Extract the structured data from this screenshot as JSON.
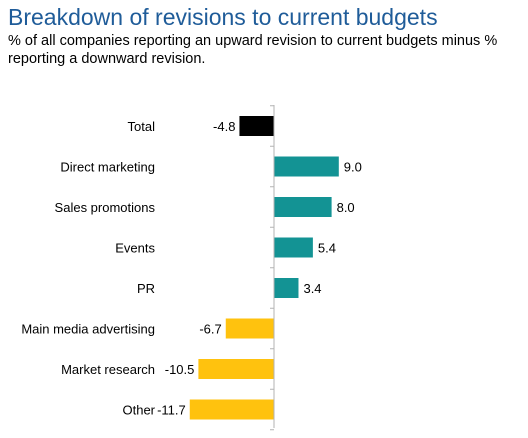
{
  "title": "Breakdown of revisions to current budgets",
  "subtitle": "% of all companies reporting an upward revision to current budgets minus % reporting a downward revision.",
  "colors": {
    "total": "#000000",
    "positive": "#139394",
    "negative": "#ffc20e",
    "axis": "#b3b3b3",
    "title": "#1f5c99"
  },
  "chart_data": {
    "type": "bar",
    "orientation": "horizontal",
    "categories": [
      "Total",
      "Direct marketing",
      "Sales promotions",
      "Events",
      "PR",
      "Main media advertising",
      "Market research",
      "Other"
    ],
    "values": [
      -4.8,
      9.0,
      8.0,
      5.4,
      3.4,
      -6.7,
      -10.5,
      -11.7
    ],
    "value_labels": [
      "-4.8",
      "9.0",
      "8.0",
      "5.4",
      "3.4",
      "-6.7",
      "-10.5",
      "-11.7"
    ],
    "xlim": [
      -11.7,
      9.0
    ],
    "title": "Breakdown of revisions to current budgets",
    "xlabel": "",
    "ylabel": "",
    "grid": false,
    "legend": "none"
  }
}
